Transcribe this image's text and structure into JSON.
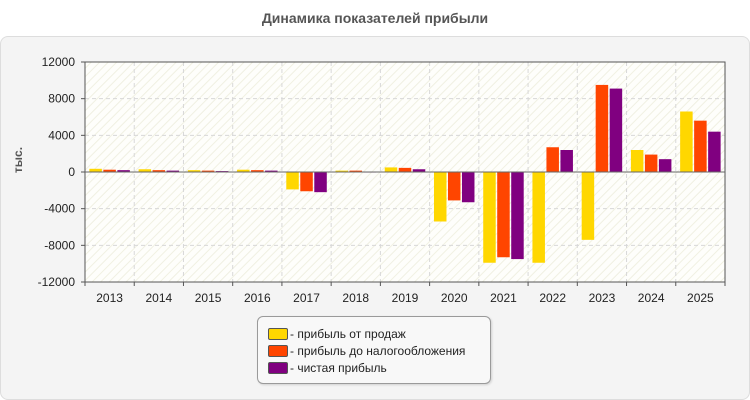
{
  "title": "Динамика показателей прибыли",
  "chart_data": {
    "type": "bar",
    "title": "Динамика показателей прибыли",
    "xlabel": "",
    "ylabel": "тыс.",
    "ylim": [
      -12000,
      12000
    ],
    "yticks": [
      12000,
      8000,
      4000,
      0,
      -4000,
      -8000,
      -12000
    ],
    "grid": true,
    "legend_position": "bottom",
    "categories": [
      "2013",
      "2014",
      "2015",
      "2016",
      "2017",
      "2018",
      "2019",
      "2020",
      "2021",
      "2022",
      "2023",
      "2024",
      "2025"
    ],
    "series": [
      {
        "name": "- прибыль от продаж",
        "color": "#ffd700",
        "values": [
          350,
          300,
          200,
          250,
          -1900,
          150,
          500,
          -5400,
          -9900,
          -9900,
          -7400,
          2400,
          6600
        ]
      },
      {
        "name": "- прибыль до налогообложения",
        "color": "#ff4500",
        "values": [
          250,
          200,
          150,
          200,
          -2100,
          150,
          450,
          -3100,
          -9300,
          2700,
          9500,
          1900,
          5600
        ]
      },
      {
        "name": "- чистая прибыль",
        "color": "#800080",
        "values": [
          200,
          150,
          100,
          150,
          -2200,
          50,
          300,
          -3300,
          -9500,
          2400,
          9100,
          1400,
          4400
        ]
      }
    ]
  }
}
